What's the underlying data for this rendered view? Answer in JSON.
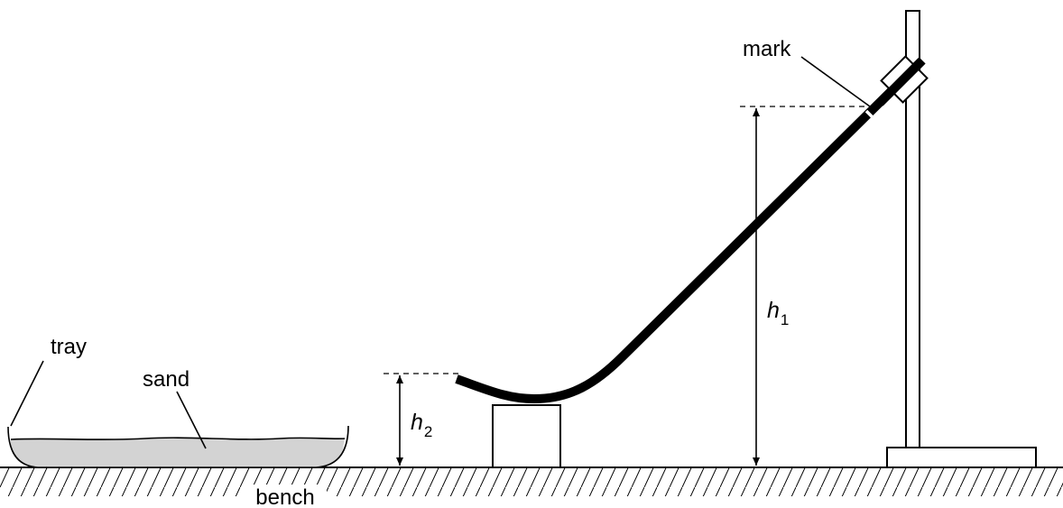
{
  "labels": {
    "tray": "tray",
    "sand": "sand",
    "bench": "bench",
    "mark": "mark",
    "h1_symbol": "h",
    "h1_subscript": "1",
    "h2_symbol": "h",
    "h2_subscript": "2"
  },
  "colors": {
    "ink": "#000000",
    "sand_fill": "#d3d3d3",
    "background": "#ffffff"
  }
}
